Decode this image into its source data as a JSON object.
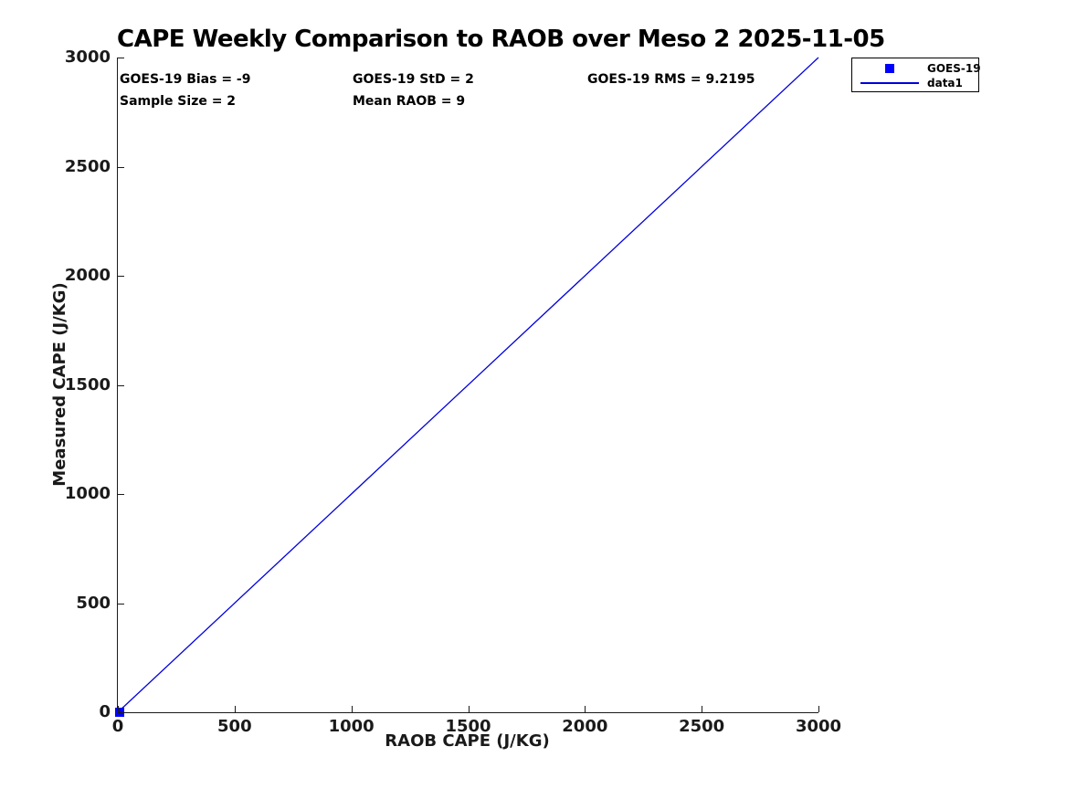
{
  "chart_data": {
    "type": "scatter",
    "title": "CAPE Weekly Comparison to RAOB over Meso 2 2025-11-05",
    "xlabel": "RAOB CAPE (J/KG)",
    "ylabel": "Measured CAPE (J/KG)",
    "xlim": [
      0,
      3000
    ],
    "ylim": [
      0,
      3000
    ],
    "xticks": [
      0,
      500,
      1000,
      1500,
      2000,
      2500,
      3000
    ],
    "yticks": [
      0,
      500,
      1000,
      1500,
      2000,
      2500,
      3000
    ],
    "grid": false,
    "axis_color": "#1a1a1a",
    "series": [
      {
        "name": "GOES-19",
        "kind": "scatter",
        "marker": "filled-square",
        "color": "#0000ff",
        "points": [
          [
            9,
            0
          ]
        ]
      },
      {
        "name": "data1",
        "kind": "line",
        "color": "#0000dd",
        "points": [
          [
            0,
            0
          ],
          [
            3000,
            3000
          ]
        ]
      }
    ],
    "annotations": [
      {
        "id": "bias",
        "label": "GOES-19 Bias = -9"
      },
      {
        "id": "std",
        "label": "GOES-19 StD = 2"
      },
      {
        "id": "rms",
        "label": "GOES-19 RMS = 9.2195"
      },
      {
        "id": "sample",
        "label": "Sample Size = 2"
      },
      {
        "id": "mean_raob",
        "label": "Mean RAOB = 9"
      }
    ],
    "legend": {
      "position": "top-right-outside",
      "entries": [
        {
          "label": "GOES-19",
          "swatch": "square"
        },
        {
          "label": "data1",
          "swatch": "line"
        }
      ]
    }
  }
}
